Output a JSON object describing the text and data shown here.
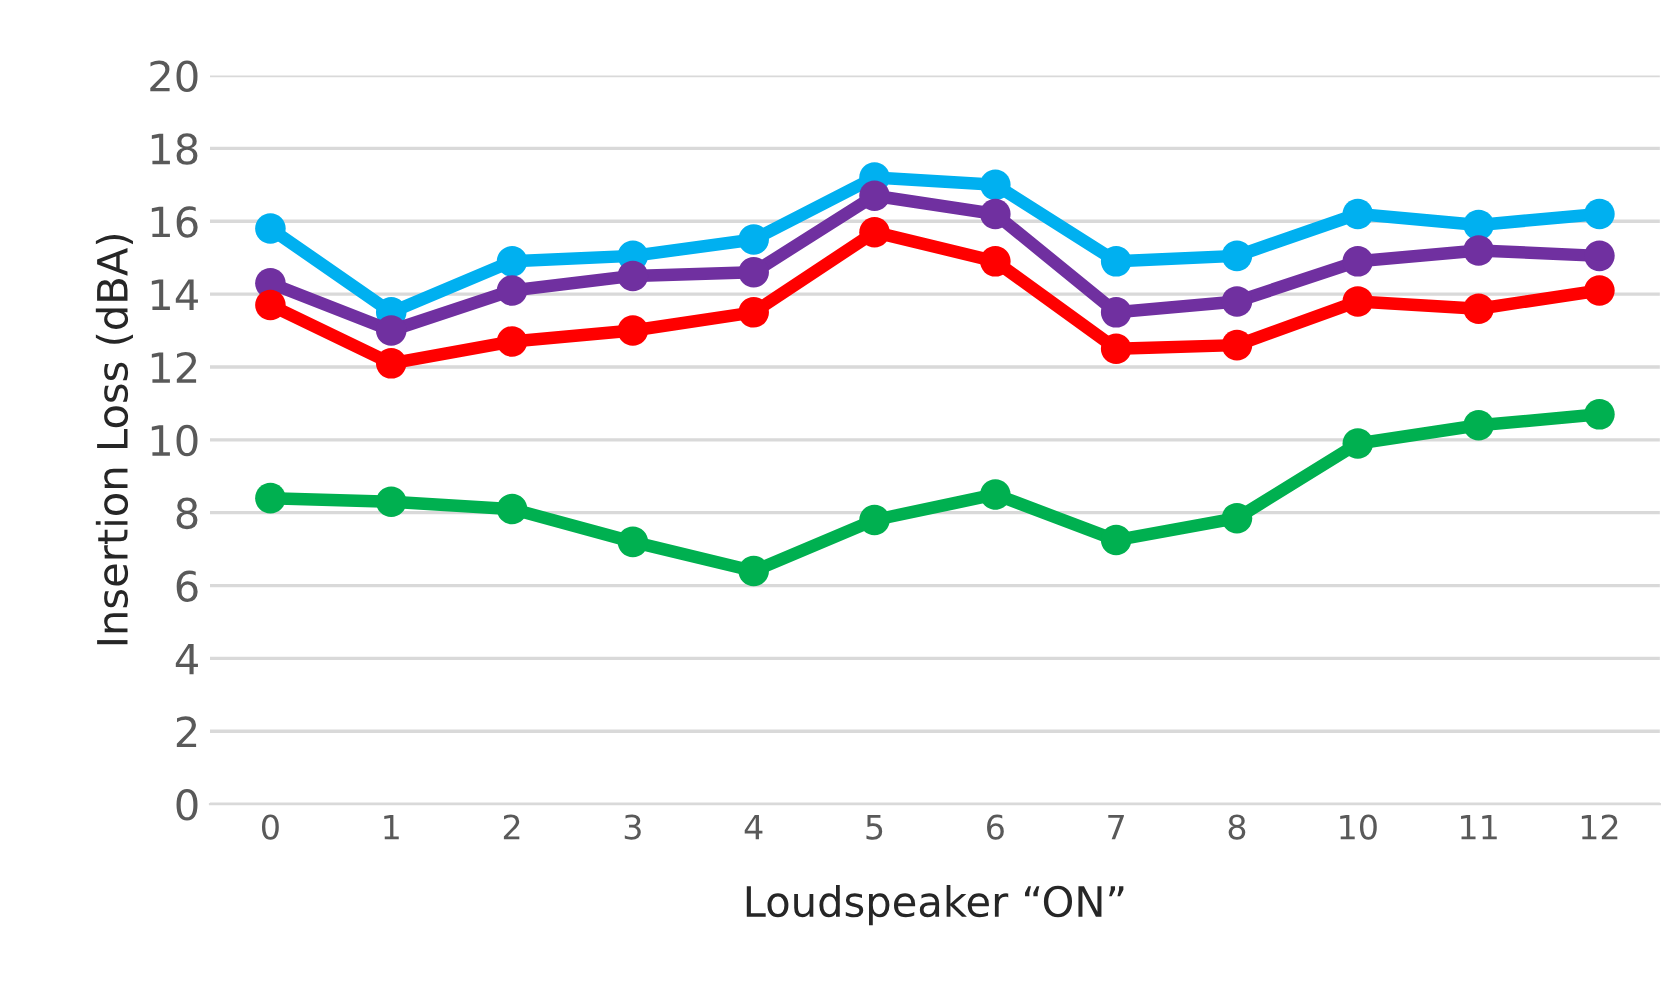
{
  "chart_data": {
    "type": "line",
    "xlabel": "Loudspeaker “ON”",
    "ylabel": "Insertion Loss (dBA)",
    "categories": [
      "0",
      "1",
      "2",
      "3",
      "4",
      "5",
      "6",
      "7",
      "8",
      "10",
      "11",
      "12"
    ],
    "series": [
      {
        "color": "#00b0f0",
        "values": [
          15.8,
          13.5,
          14.9,
          15.05,
          15.5,
          17.2,
          17.0,
          14.9,
          15.05,
          16.2,
          15.9,
          16.2
        ]
      },
      {
        "color": "#7030a0",
        "values": [
          14.3,
          13.0,
          14.1,
          14.5,
          14.6,
          16.7,
          16.2,
          13.5,
          13.8,
          14.9,
          15.2,
          15.05
        ]
      },
      {
        "color": "#ff0000",
        "values": [
          13.7,
          12.1,
          12.7,
          13.0,
          13.5,
          15.7,
          14.9,
          12.5,
          12.6,
          13.8,
          13.6,
          14.1
        ]
      },
      {
        "color": "#00b050",
        "values": [
          8.4,
          8.3,
          8.1,
          7.2,
          6.4,
          7.8,
          8.5,
          7.25,
          7.85,
          9.9,
          10.4,
          10.7
        ]
      }
    ],
    "ylim": [
      0,
      20
    ],
    "yticks": [
      0,
      2,
      4,
      6,
      8,
      10,
      12,
      14,
      16,
      18,
      20
    ],
    "grid": "y",
    "marker": "circle",
    "line_style": "solid"
  }
}
